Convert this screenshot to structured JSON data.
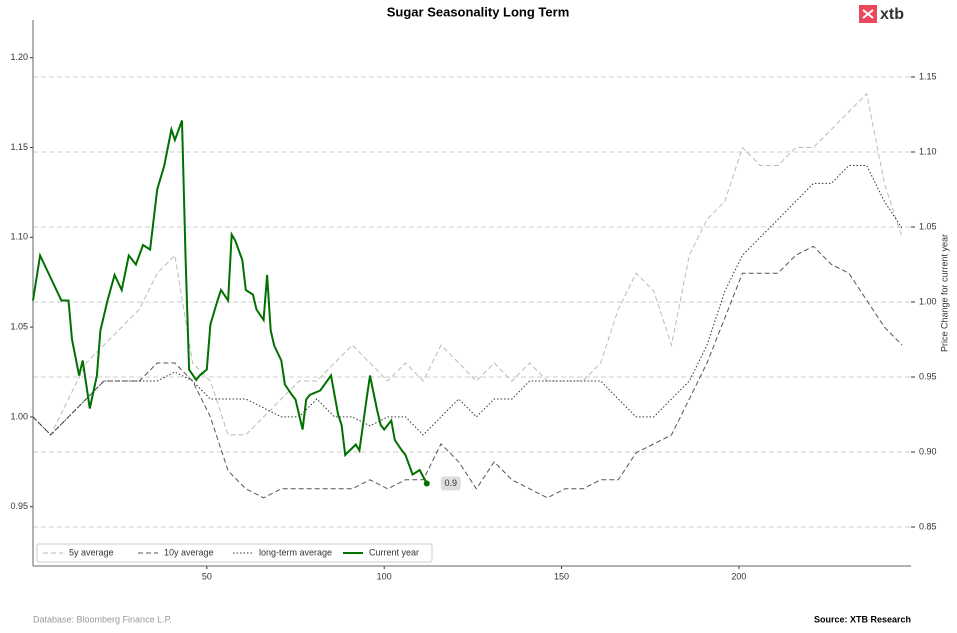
{
  "chart_data": {
    "type": "line",
    "title": "Sugar Seasonality Long Term",
    "y2label": "Price Change for current year",
    "footer_left": "Database: Bloomberg Finance L.P.",
    "footer_right": "Source: XTB Research",
    "logo": "xtb",
    "xlim": [
      1,
      248.5
    ],
    "xticks": [
      50,
      100,
      150,
      200
    ],
    "ylim": [
      0.917,
      1.221
    ],
    "yticks": [
      0.95,
      {
        "value": 1.0,
        "label": "1.00"
      },
      1.05,
      {
        "value": 1.1,
        "label": "1.10"
      },
      1.15,
      {
        "value": 1.2,
        "label": "1.20"
      }
    ],
    "y2lim": [
      0.824,
      1.188
    ],
    "y2ticks": [
      0.85,
      {
        "value": 0.9,
        "label": "0.90"
      },
      0.95,
      {
        "value": 1.0,
        "label": "1.00"
      },
      1.05,
      {
        "value": 1.1,
        "label": "1.10"
      },
      1.15
    ],
    "grid": true,
    "legend": "lower left",
    "series": [
      {
        "name": "5y average",
        "color": "#bbbbbb",
        "dash": "dashed",
        "x": [
          1,
          6,
          11,
          16,
          21,
          26,
          31,
          36,
          41,
          46,
          51,
          56,
          61,
          66,
          71,
          76,
          81,
          86,
          91,
          96,
          101,
          106,
          111,
          116,
          121,
          126,
          131,
          136,
          141,
          146,
          151,
          156,
          161,
          166,
          171,
          176,
          181,
          186,
          191,
          196,
          201,
          206,
          211,
          216,
          221,
          226,
          231,
          236,
          241,
          246
        ],
        "values": [
          1.0,
          0.99,
          1.01,
          1.03,
          1.04,
          1.05,
          1.06,
          1.08,
          1.09,
          1.03,
          1.02,
          0.99,
          0.99,
          1.0,
          1.01,
          1.02,
          1.02,
          1.03,
          1.04,
          1.03,
          1.02,
          1.03,
          1.02,
          1.04,
          1.03,
          1.02,
          1.03,
          1.02,
          1.03,
          1.02,
          1.02,
          1.02,
          1.03,
          1.06,
          1.08,
          1.07,
          1.04,
          1.09,
          1.11,
          1.12,
          1.15,
          1.14,
          1.14,
          1.15,
          1.15,
          1.16,
          1.17,
          1.18,
          1.13,
          1.1
        ]
      },
      {
        "name": "10y average",
        "color": "#555555",
        "dash": "dashed",
        "x": [
          1,
          6,
          11,
          16,
          21,
          26,
          31,
          36,
          41,
          46,
          51,
          56,
          61,
          66,
          71,
          76,
          81,
          86,
          91,
          96,
          101,
          106,
          111,
          116,
          121,
          126,
          131,
          136,
          141,
          146,
          151,
          156,
          161,
          166,
          171,
          176,
          181,
          186,
          191,
          196,
          201,
          206,
          211,
          216,
          221,
          226,
          231,
          236,
          241,
          246
        ],
        "values": [
          1.0,
          0.99,
          1.0,
          1.01,
          1.02,
          1.02,
          1.02,
          1.03,
          1.03,
          1.02,
          1.0,
          0.97,
          0.96,
          0.955,
          0.96,
          0.96,
          0.96,
          0.96,
          0.96,
          0.965,
          0.96,
          0.965,
          0.965,
          0.985,
          0.975,
          0.96,
          0.975,
          0.965,
          0.96,
          0.955,
          0.96,
          0.96,
          0.965,
          0.965,
          0.98,
          0.985,
          0.99,
          1.01,
          1.03,
          1.055,
          1.08,
          1.08,
          1.08,
          1.09,
          1.095,
          1.085,
          1.08,
          1.065,
          1.05,
          1.04
        ]
      },
      {
        "name": "long-term average",
        "color": "#333333",
        "dash": "dotted",
        "x": [
          1,
          6,
          11,
          16,
          21,
          26,
          31,
          36,
          41,
          46,
          51,
          56,
          61,
          66,
          71,
          76,
          81,
          86,
          91,
          96,
          101,
          106,
          111,
          116,
          121,
          126,
          131,
          136,
          141,
          146,
          151,
          156,
          161,
          166,
          171,
          176,
          181,
          186,
          191,
          196,
          201,
          206,
          211,
          216,
          221,
          226,
          231,
          236,
          241,
          246
        ],
        "values": [
          1.0,
          0.99,
          1.0,
          1.01,
          1.02,
          1.02,
          1.02,
          1.02,
          1.025,
          1.02,
          1.01,
          1.01,
          1.01,
          1.005,
          1.0,
          1.0,
          1.01,
          1.0,
          1.0,
          0.995,
          1.0,
          1.0,
          0.99,
          1.0,
          1.01,
          1.0,
          1.01,
          1.01,
          1.02,
          1.02,
          1.02,
          1.02,
          1.02,
          1.01,
          1.0,
          1.0,
          1.01,
          1.02,
          1.04,
          1.07,
          1.09,
          1.1,
          1.11,
          1.12,
          1.13,
          1.13,
          1.14,
          1.14,
          1.12,
          1.105
        ]
      },
      {
        "name": "Current year",
        "color": "#007000",
        "dash": "solid",
        "axis": "y2",
        "x": [
          1,
          3,
          5,
          7,
          9,
          11,
          12,
          14,
          15,
          17,
          19,
          20,
          22,
          24,
          26,
          28,
          30,
          32,
          34,
          36,
          38,
          40,
          41,
          43,
          44,
          45,
          47,
          48,
          50,
          51,
          53,
          54,
          56,
          57,
          58,
          60,
          61,
          63,
          64,
          66,
          67,
          68,
          69,
          71,
          72,
          74,
          75,
          77,
          78,
          79,
          82,
          85,
          87,
          88,
          89,
          92,
          93,
          95,
          96,
          98,
          99,
          100,
          102,
          103,
          105,
          106,
          108,
          110,
          112
        ],
        "values": [
          1.001,
          1.031,
          1.021,
          1.011,
          1.001,
          1.001,
          0.975,
          0.951,
          0.961,
          0.929,
          0.951,
          0.981,
          1.001,
          1.018,
          1.008,
          1.031,
          1.025,
          1.038,
          1.035,
          1.075,
          1.091,
          1.115,
          1.108,
          1.121,
          1.031,
          0.955,
          0.948,
          0.951,
          0.955,
          0.985,
          1.001,
          1.008,
          1.001,
          1.045,
          1.041,
          1.028,
          1.008,
          1.005,
          0.995,
          0.988,
          1.018,
          0.981,
          0.971,
          0.961,
          0.945,
          0.938,
          0.935,
          0.915,
          0.935,
          0.938,
          0.941,
          0.951,
          0.925,
          0.918,
          0.898,
          0.905,
          0.901,
          0.935,
          0.951,
          0.928,
          0.918,
          0.915,
          0.921,
          0.908,
          0.901,
          0.898,
          0.885,
          0.888,
          0.879
        ],
        "value_labels": [
          null,
          null,
          null,
          null,
          null,
          null,
          null,
          null,
          null,
          null,
          null,
          null,
          null,
          null,
          null,
          null,
          null,
          null,
          null,
          null,
          null,
          null,
          null,
          null,
          null,
          null,
          null,
          null,
          null,
          null,
          null,
          null,
          null,
          null,
          null,
          null,
          null,
          null,
          null,
          null,
          null,
          null,
          null,
          null,
          null,
          null,
          null,
          null,
          null,
          null,
          null,
          null,
          null,
          null,
          null,
          null,
          null,
          null,
          null,
          null,
          null,
          null,
          null,
          null,
          null,
          null,
          null,
          null,
          "0.9"
        ]
      }
    ]
  }
}
